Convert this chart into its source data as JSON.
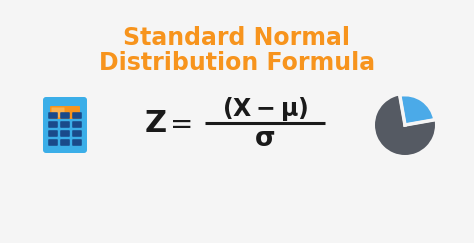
{
  "title_line1": "Standard Normal",
  "title_line2": "Distribution Formula",
  "title_color": "#F7941D",
  "title_fontsize": 17,
  "title_fontweight": "bold",
  "bg_color": "#f5f5f5",
  "formula_color": "#1a1a1a",
  "formula_fontsize": 18,
  "calc_color_body": "#3BAEE8",
  "calc_color_screen": "#F7941D",
  "calc_color_screen_glare": "#ffd080",
  "calc_color_buttons": "#2255aa",
  "calc_color_outline": "#2288cc",
  "pie_color_main": "#555a63",
  "pie_color_slice": "#4BAAE8",
  "pie_color_gap": "#f5f5f5"
}
